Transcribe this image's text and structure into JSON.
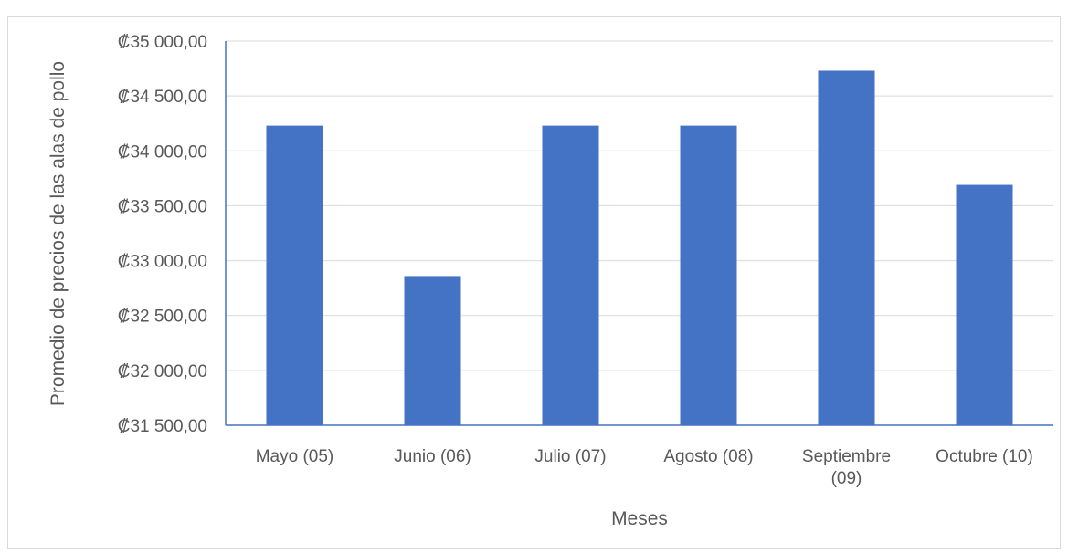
{
  "chart_data": {
    "type": "bar",
    "title": "",
    "xlabel": "Meses",
    "ylabel": "Promedio de  precios de las alas de pollo",
    "categories": [
      "Mayo (05)",
      "Junio (06)",
      "Julio (07)",
      "Agosto (08)",
      "Septiembre (09)",
      "Octubre (10)"
    ],
    "series": [
      {
        "values": [
          34230,
          32860,
          34230,
          34230,
          34730,
          33690
        ],
        "color": "#4472C4"
      }
    ],
    "ylim": [
      31500,
      35000
    ],
    "yticks": [
      31500,
      32000,
      32500,
      33000,
      33500,
      34000,
      34500,
      35000
    ],
    "ytick_labels": [
      "₡31 500,00",
      "₡32 000,00",
      "₡32 500,00",
      "₡33 000,00",
      "₡33 500,00",
      "₡34 000,00",
      "₡34 500,00",
      "₡35 000,00"
    ],
    "grid": true,
    "legend": "none"
  }
}
